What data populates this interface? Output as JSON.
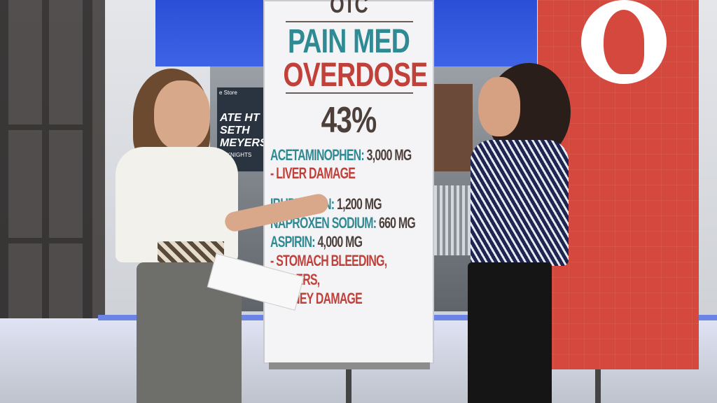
{
  "background": {
    "store_sign_top": "e Store",
    "store_sign_text": "ATE HT SETH MEYERS",
    "store_sign_bottom": "EXKNIGHTS"
  },
  "board": {
    "header_partial": "OTC",
    "title_line1": "PAIN MED",
    "title_line2": "OVERDOSE",
    "stat": "43%",
    "items": [
      {
        "drug": "ACETAMINOPHEN:",
        "dose": "3,000 MG"
      },
      {
        "effect": "- LIVER DAMAGE"
      },
      {
        "drug": "IBUPROFEN:",
        "dose": "1,200 MG"
      },
      {
        "drug": "NAPROXEN SODIUM:",
        "dose": "660 MG"
      },
      {
        "drug": "ASPIRIN:",
        "dose": "4,000 MG"
      },
      {
        "effect": "- STOMACH BLEEDING,"
      },
      {
        "effect": "ULCERS,"
      },
      {
        "effect": "KIDNEY DAMAGE"
      }
    ],
    "colors": {
      "teal": "#2f8a93",
      "red": "#c0413a",
      "brown": "#4d3f3a"
    }
  },
  "side_board": {
    "icon": "head-profile-icon",
    "color": "#d5483d"
  }
}
